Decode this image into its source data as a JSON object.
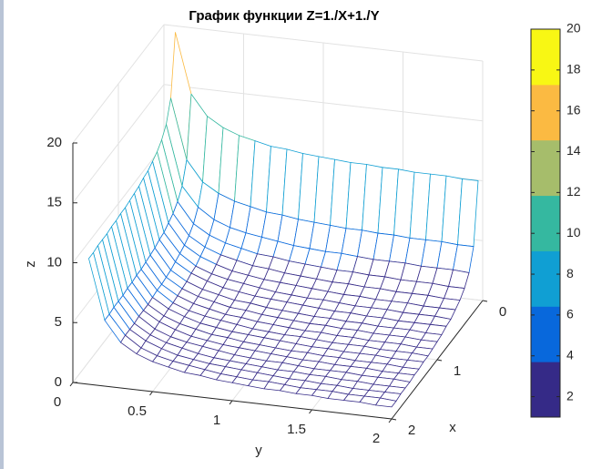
{
  "chart_data": {
    "type": "mesh3d",
    "title": "График функции Z=1./X+1./Y",
    "xlabel": "x",
    "ylabel": "y",
    "zlabel": "z",
    "x": [
      0.1,
      0.2,
      0.3,
      0.4,
      0.5,
      0.6,
      0.7,
      0.8,
      0.9,
      1.0,
      1.1,
      1.2,
      1.3,
      1.4,
      1.5,
      1.6,
      1.7,
      1.8,
      1.9,
      2.0
    ],
    "y": [
      0.1,
      0.2,
      0.3,
      0.4,
      0.5,
      0.6,
      0.7,
      0.8,
      0.9,
      1.0,
      1.1,
      1.2,
      1.3,
      1.4,
      1.5,
      1.6,
      1.7,
      1.8,
      1.9,
      2.0
    ],
    "z": [
      [
        20,
        15,
        13.3,
        12.5,
        12,
        11.7,
        11.4,
        11.3,
        11.1,
        11,
        10.9,
        10.8,
        10.8,
        10.7,
        10.7,
        10.6,
        10.6,
        10.6,
        10.5,
        10.5
      ],
      [
        15,
        10,
        8.3,
        7.5,
        7,
        6.7,
        6.4,
        6.3,
        6.1,
        6,
        5.9,
        5.8,
        5.8,
        5.7,
        5.7,
        5.6,
        5.6,
        5.6,
        5.5,
        5.5
      ],
      [
        13.3,
        8.3,
        6.7,
        5.8,
        5.3,
        5,
        4.8,
        4.6,
        4.4,
        4.3,
        4.2,
        4.2,
        4.1,
        4,
        4,
        4,
        3.9,
        3.9,
        3.9,
        3.8
      ],
      [
        12.5,
        7.5,
        5.8,
        5,
        4.5,
        4.2,
        3.9,
        3.8,
        3.6,
        3.5,
        3.4,
        3.3,
        3.3,
        3.2,
        3.2,
        3.1,
        3.1,
        3.1,
        3,
        3
      ],
      [
        12,
        7,
        5.3,
        4.5,
        4,
        3.7,
        3.4,
        3.3,
        3.1,
        3,
        2.9,
        2.8,
        2.8,
        2.7,
        2.7,
        2.6,
        2.6,
        2.6,
        2.5,
        2.5
      ],
      [
        11.7,
        6.7,
        5,
        4.2,
        3.7,
        3.3,
        3.1,
        2.9,
        2.8,
        2.7,
        2.6,
        2.5,
        2.4,
        2.4,
        2.3,
        2.3,
        2.3,
        2.2,
        2.2,
        2.2
      ],
      [
        11.4,
        6.4,
        4.8,
        3.9,
        3.4,
        3.1,
        2.9,
        2.7,
        2.5,
        2.4,
        2.3,
        2.3,
        2.2,
        2.1,
        2.1,
        2.1,
        2,
        2,
        2,
        1.9
      ],
      [
        11.3,
        6.3,
        4.6,
        3.8,
        3.3,
        2.9,
        2.7,
        2.5,
        2.4,
        2.3,
        2.2,
        2.1,
        2,
        2,
        1.9,
        1.9,
        1.8,
        1.8,
        1.8,
        1.8
      ],
      [
        11.1,
        6.1,
        4.4,
        3.6,
        3.1,
        2.8,
        2.5,
        2.4,
        2.2,
        2.1,
        2,
        1.9,
        1.9,
        1.8,
        1.8,
        1.7,
        1.7,
        1.7,
        1.6,
        1.6
      ],
      [
        11,
        6,
        4.3,
        3.5,
        3,
        2.7,
        2.4,
        2.3,
        2.1,
        2,
        1.9,
        1.8,
        1.8,
        1.7,
        1.7,
        1.6,
        1.6,
        1.6,
        1.5,
        1.5
      ],
      [
        10.9,
        5.9,
        4.2,
        3.4,
        2.9,
        2.6,
        2.3,
        2.2,
        2,
        1.9,
        1.8,
        1.7,
        1.7,
        1.6,
        1.6,
        1.5,
        1.5,
        1.5,
        1.4,
        1.4
      ],
      [
        10.8,
        5.8,
        4.2,
        3.3,
        2.8,
        2.5,
        2.3,
        2.1,
        1.9,
        1.8,
        1.7,
        1.7,
        1.6,
        1.5,
        1.5,
        1.5,
        1.4,
        1.4,
        1.4,
        1.3
      ],
      [
        10.8,
        5.8,
        4.1,
        3.3,
        2.8,
        2.4,
        2.2,
        2,
        1.9,
        1.8,
        1.7,
        1.6,
        1.5,
        1.5,
        1.4,
        1.4,
        1.4,
        1.3,
        1.3,
        1.3
      ],
      [
        10.7,
        5.7,
        4,
        3.2,
        2.7,
        2.4,
        2.1,
        2,
        1.8,
        1.7,
        1.6,
        1.5,
        1.5,
        1.4,
        1.4,
        1.3,
        1.3,
        1.3,
        1.2,
        1.2
      ],
      [
        10.7,
        5.7,
        4,
        3.2,
        2.7,
        2.3,
        2.1,
        1.9,
        1.8,
        1.7,
        1.6,
        1.5,
        1.4,
        1.4,
        1.3,
        1.3,
        1.3,
        1.2,
        1.2,
        1.2
      ],
      [
        10.6,
        5.6,
        4,
        3.1,
        2.6,
        2.3,
        2.1,
        1.9,
        1.7,
        1.6,
        1.5,
        1.5,
        1.4,
        1.3,
        1.3,
        1.3,
        1.2,
        1.2,
        1.2,
        1.1
      ],
      [
        10.6,
        5.6,
        3.9,
        3.1,
        2.6,
        2.3,
        2,
        1.8,
        1.7,
        1.6,
        1.5,
        1.4,
        1.4,
        1.3,
        1.3,
        1.2,
        1.2,
        1.1,
        1.1,
        1.1
      ],
      [
        10.6,
        5.6,
        3.9,
        3.1,
        2.6,
        2.2,
        2,
        1.8,
        1.7,
        1.6,
        1.5,
        1.4,
        1.3,
        1.3,
        1.2,
        1.2,
        1.1,
        1.1,
        1.1,
        1.1
      ],
      [
        10.5,
        5.5,
        3.9,
        3,
        2.5,
        2.2,
        2,
        1.8,
        1.6,
        1.5,
        1.4,
        1.4,
        1.3,
        1.2,
        1.2,
        1.2,
        1.1,
        1.1,
        1.1,
        1
      ],
      [
        10.5,
        5.5,
        3.8,
        3,
        2.5,
        2.2,
        1.9,
        1.8,
        1.6,
        1.5,
        1.4,
        1.3,
        1.3,
        1.2,
        1.2,
        1.1,
        1.1,
        1.1,
        1,
        1
      ]
    ],
    "xlim": [
      0,
      2
    ],
    "xticks": [
      0,
      1,
      2
    ],
    "ylim": [
      0,
      2
    ],
    "yticks": [
      0,
      0.5,
      1,
      1.5,
      2
    ],
    "zlim": [
      0,
      20
    ],
    "zticks": [
      0,
      5,
      10,
      15,
      20
    ],
    "grid": true,
    "colorbar": {
      "clim": [
        1,
        20
      ],
      "ticks": [
        2,
        4,
        6,
        8,
        10,
        12,
        14,
        16,
        18,
        20
      ],
      "colors": [
        "#352a87",
        "#0868dc",
        "#109fd3",
        "#35b8a0",
        "#a6bd6b",
        "#fbba42",
        "#f8f714"
      ]
    }
  }
}
